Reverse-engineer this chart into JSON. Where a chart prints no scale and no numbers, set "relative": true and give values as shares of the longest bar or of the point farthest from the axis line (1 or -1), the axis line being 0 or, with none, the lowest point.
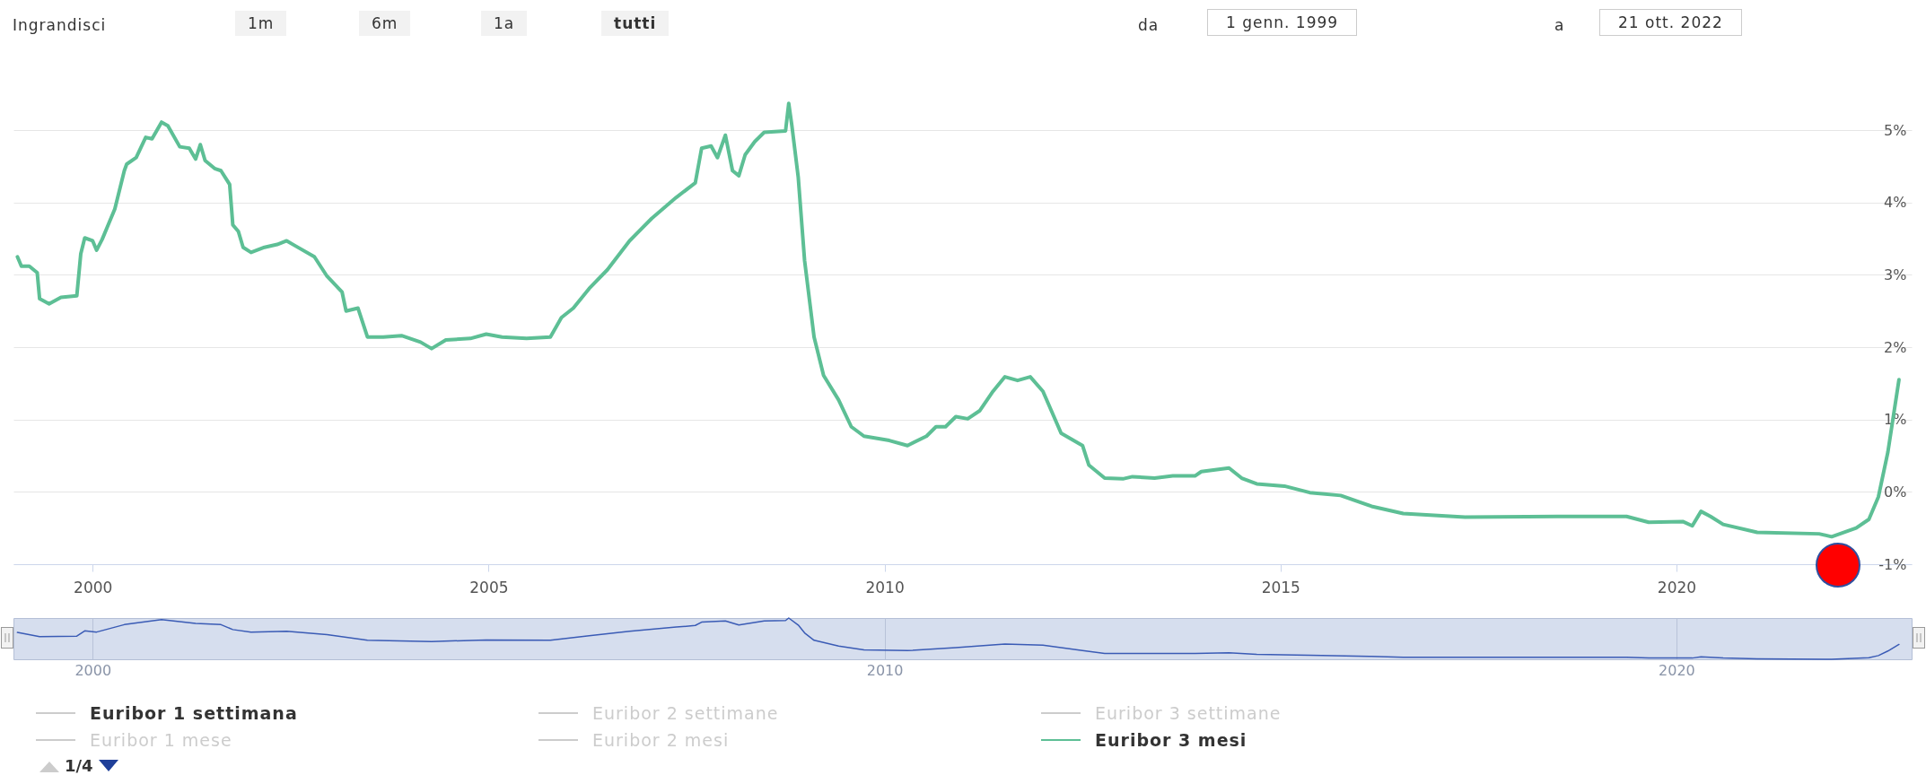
{
  "chart_data": [
    {
      "type": "line",
      "x": [
        1999.05,
        1999.1,
        1999.2,
        1999.3,
        1999.33,
        1999.45,
        1999.6,
        1999.8,
        1999.85,
        1999.9,
        2000.0,
        2000.05,
        2000.12,
        2000.28,
        2000.4,
        2000.43,
        2000.55,
        2000.67,
        2000.75,
        2000.87,
        2000.95,
        2001.1,
        2001.22,
        2001.3,
        2001.36,
        2001.42,
        2001.54,
        2001.62,
        2001.73,
        2001.77,
        2001.84,
        2001.9,
        2002.0,
        2002.17,
        2002.33,
        2002.45,
        2002.56,
        2002.8,
        2002.96,
        2003.15,
        2003.2,
        2003.35,
        2003.47,
        2003.67,
        2003.9,
        2004.14,
        2004.28,
        2004.46,
        2004.77,
        2004.97,
        2005.17,
        2005.48,
        2005.78,
        2005.92,
        2006.07,
        2006.27,
        2006.5,
        2006.78,
        2007.06,
        2007.37,
        2007.61,
        2007.69,
        2007.81,
        2007.89,
        2007.99,
        2008.08,
        2008.16,
        2008.24,
        2008.36,
        2008.48,
        2008.75,
        2008.79,
        2008.83,
        2008.91,
        2008.99,
        2009.11,
        2009.23,
        2009.42,
        2009.58,
        2009.74,
        2010.06,
        2010.29,
        2010.53,
        2010.65,
        2010.77,
        2010.9,
        2011.05,
        2011.2,
        2011.37,
        2011.52,
        2011.68,
        2011.84,
        2012.0,
        2012.23,
        2012.5,
        2012.58,
        2012.78,
        2013.01,
        2013.13,
        2013.41,
        2013.64,
        2013.92,
        2014.0,
        2014.35,
        2014.51,
        2014.7,
        2015.05,
        2015.37,
        2015.76,
        2016.15,
        2016.55,
        2017.33,
        2018.5,
        2019.37,
        2019.65,
        2020.08,
        2020.2,
        2020.31,
        2020.43,
        2020.59,
        2021.02,
        2021.8,
        2021.96,
        2022.27,
        2022.43,
        2022.55,
        2022.67,
        2022.81
      ],
      "series": [
        {
          "name": "Euribor 3 mesi",
          "color": "#5dbf95",
          "values": [
            3.25,
            3.12,
            3.12,
            3.03,
            2.67,
            2.6,
            2.69,
            2.71,
            3.29,
            3.51,
            3.47,
            3.34,
            3.49,
            3.91,
            4.44,
            4.53,
            4.62,
            4.9,
            4.88,
            5.11,
            5.06,
            4.77,
            4.75,
            4.6,
            4.8,
            4.58,
            4.47,
            4.44,
            4.25,
            3.69,
            3.6,
            3.38,
            3.31,
            3.38,
            3.42,
            3.47,
            3.4,
            3.25,
            2.98,
            2.76,
            2.5,
            2.54,
            2.14,
            2.14,
            2.16,
            2.07,
            1.98,
            2.1,
            2.12,
            2.18,
            2.14,
            2.12,
            2.14,
            2.41,
            2.54,
            2.81,
            3.07,
            3.47,
            3.78,
            4.07,
            4.27,
            4.75,
            4.78,
            4.62,
            4.93,
            4.44,
            4.37,
            4.66,
            4.84,
            4.97,
            4.99,
            5.37,
            5.06,
            4.35,
            3.2,
            2.14,
            1.61,
            1.27,
            0.9,
            0.77,
            0.71,
            0.64,
            0.77,
            0.9,
            0.9,
            1.04,
            1.01,
            1.12,
            1.39,
            1.59,
            1.54,
            1.59,
            1.39,
            0.81,
            0.64,
            0.37,
            0.19,
            0.18,
            0.21,
            0.19,
            0.22,
            0.22,
            0.28,
            0.33,
            0.19,
            0.11,
            0.08,
            -0.01,
            -0.05,
            -0.2,
            -0.3,
            -0.35,
            -0.34,
            -0.34,
            -0.42,
            -0.41,
            -0.47,
            -0.27,
            -0.34,
            -0.45,
            -0.56,
            -0.58,
            -0.62,
            -0.5,
            -0.38,
            -0.07,
            0.55,
            1.55
          ]
        }
      ],
      "xlim": [
        1999.0,
        2022.97
      ],
      "xticks": [
        2000,
        2005,
        2010,
        2015,
        2020
      ],
      "ylim": [
        -1,
        6.03
      ],
      "yticks": [
        {
          "value": -1,
          "label": "-1%"
        },
        {
          "value": 0,
          "label": "0%"
        },
        {
          "value": 1,
          "label": "1%"
        },
        {
          "value": 2,
          "label": "2%"
        },
        {
          "value": 3,
          "label": "3%"
        },
        {
          "value": 4,
          "label": "4%"
        },
        {
          "value": 5,
          "label": "5%"
        }
      ],
      "grid": "y",
      "legend": "bottom",
      "annotations": [
        "Ingrandisci",
        "1m",
        "6m",
        "1a",
        "tutti",
        "da",
        "1 genn. 1999",
        "a",
        "21 ott. 2022",
        "Euribor 1 settimana",
        "Euribor 2 settimane",
        "Euribor 3 settimane",
        "Euribor 1 mese",
        "Euribor 2 mesi",
        "1/4"
      ]
    },
    {
      "type": "line",
      "relative": true,
      "tick_labels": "x",
      "grid": "x",
      "x": [
        1999.05,
        1999.33,
        1999.8,
        1999.9,
        2000.05,
        2000.4,
        2000.87,
        2001.3,
        2001.62,
        2001.77,
        2002.0,
        2002.45,
        2002.96,
        2003.47,
        2004.28,
        2004.97,
        2005.78,
        2006.27,
        2006.78,
        2007.37,
        2007.61,
        2007.69,
        2007.99,
        2008.16,
        2008.48,
        2008.75,
        2008.79,
        2008.91,
        2008.99,
        2009.11,
        2009.42,
        2009.74,
        2010.29,
        2010.9,
        2011.52,
        2012.0,
        2012.5,
        2012.78,
        2013.92,
        2014.35,
        2014.7,
        2015.37,
        2016.15,
        2016.55,
        2019.37,
        2019.65,
        2020.2,
        2020.31,
        2020.59,
        2021.02,
        2021.96,
        2022.43,
        2022.55,
        2022.67,
        2022.81
      ],
      "series": [
        {
          "color": "#3a5bb5",
          "values": [
            0.65,
            0.55,
            0.56,
            0.69,
            0.66,
            0.84,
            0.96,
            0.87,
            0.84,
            0.72,
            0.66,
            0.68,
            0.6,
            0.46,
            0.43,
            0.47,
            0.46,
            0.57,
            0.68,
            0.78,
            0.82,
            0.9,
            0.93,
            0.83,
            0.93,
            0.94,
            1,
            0.83,
            0.64,
            0.46,
            0.32,
            0.23,
            0.21,
            0.28,
            0.37,
            0.34,
            0.21,
            0.14,
            0.14,
            0.16,
            0.12,
            0.1,
            0.07,
            0.05,
            0.05,
            0.03,
            0.03,
            0.06,
            0.03,
            0.01,
            0,
            0.04,
            0.09,
            0.2,
            0.36
          ]
        }
      ],
      "xlim": [
        1999.0,
        2022.97
      ],
      "xticks": [
        2000,
        2010,
        2020
      ]
    }
  ]
}
